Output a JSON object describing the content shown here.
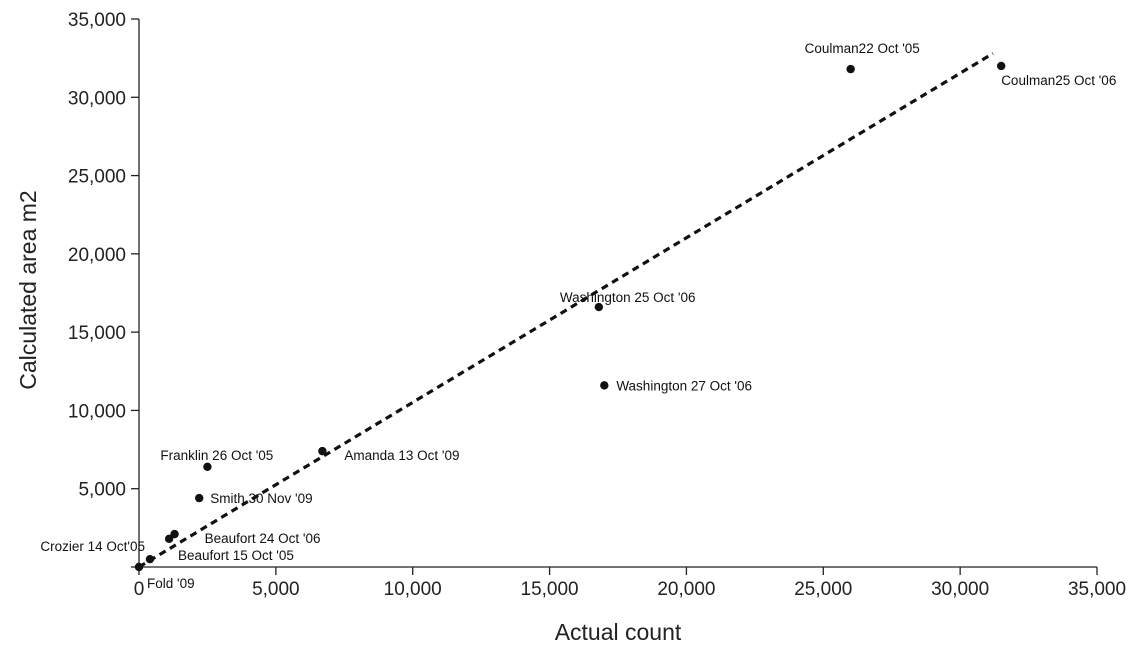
{
  "chart_data": {
    "type": "scatter",
    "xlabel": "Actual count",
    "ylabel": "Calculated area m2",
    "xlim": [
      0,
      35000
    ],
    "ylim": [
      0,
      35000
    ],
    "grid": false,
    "x_ticks": [
      {
        "value": 0,
        "label": "0"
      },
      {
        "value": 5000,
        "label": "5,000"
      },
      {
        "value": 10000,
        "label": "10,000"
      },
      {
        "value": 15000,
        "label": "15,000"
      },
      {
        "value": 20000,
        "label": "20,000"
      },
      {
        "value": 25000,
        "label": "25,000"
      },
      {
        "value": 30000,
        "label": "30,000"
      },
      {
        "value": 35000,
        "label": "35,000"
      }
    ],
    "y_ticks": [
      {
        "value": 0,
        "label": ""
      },
      {
        "value": 5000,
        "label": "5,000"
      },
      {
        "value": 10000,
        "label": "10,000"
      },
      {
        "value": 15000,
        "label": "15,000"
      },
      {
        "value": 20000,
        "label": "20,000"
      },
      {
        "value": 25000,
        "label": "25,000"
      },
      {
        "value": 30000,
        "label": "30,000"
      },
      {
        "value": 35000,
        "label": "35,000"
      }
    ],
    "points": [
      {
        "label": "Coulman22 Oct '05",
        "x": 26000,
        "y": 31800
      },
      {
        "label": "Coulman25 Oct '06",
        "x": 31500,
        "y": 32000
      },
      {
        "label": "Washington 25 Oct '06",
        "x": 16800,
        "y": 16600
      },
      {
        "label": "Washington 27 Oct '06",
        "x": 17000,
        "y": 11600
      },
      {
        "label": "Franklin 26 Oct '05",
        "x": 2500,
        "y": 6400
      },
      {
        "label": "Amanda 13 Oct '09",
        "x": 6700,
        "y": 7400
      },
      {
        "label": "Smith 30 Nov '09",
        "x": 2200,
        "y": 4400
      },
      {
        "label": "Beaufort 24 Oct '06",
        "x": 1300,
        "y": 2100
      },
      {
        "label": "",
        "x": 1100,
        "y": 1800
      },
      {
        "label": "Beaufort 15 Oct '05",
        "x": 400,
        "y": 500
      },
      {
        "label": "Crozier 14 Oct'05",
        "x": 0,
        "y": 0
      },
      {
        "label": "Fold '09",
        "x": 0,
        "y": 0
      }
    ],
    "trendline": {
      "style": "dashed",
      "x": [
        0,
        31200
      ],
      "y": [
        0,
        32800
      ]
    }
  }
}
